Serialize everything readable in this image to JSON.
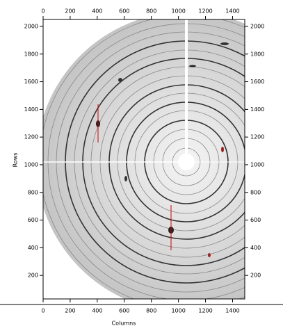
{
  "chart_data": {
    "type": "image",
    "xlabel": "Columns",
    "ylabel": "Rows",
    "xlim": [
      0,
      1490
    ],
    "ylim": [
      30,
      2050
    ],
    "xticks": [
      0,
      200,
      400,
      600,
      800,
      1000,
      1200,
      1400
    ],
    "yticks": [
      200,
      400,
      600,
      800,
      1000,
      1200,
      1400,
      1600,
      1800,
      2000
    ]
  }
}
